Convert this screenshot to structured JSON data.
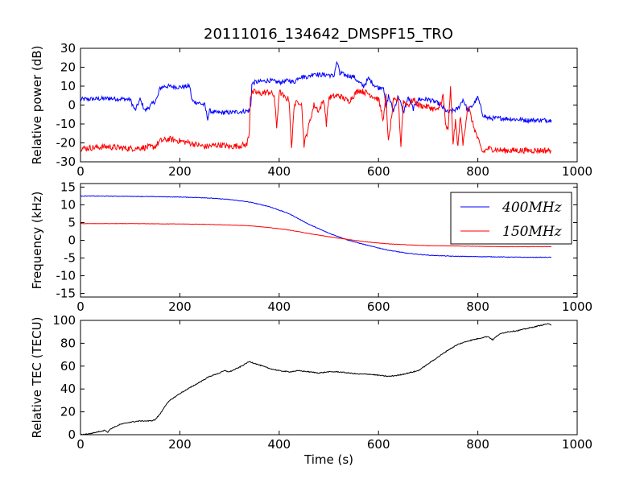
{
  "chart_data": [
    {
      "type": "line",
      "title": "20111016_134642_DMSPF15_TRO",
      "xlabel": "",
      "ylabel": "Relative power (dB)",
      "xlim": [
        0,
        1000
      ],
      "ylim": [
        -30,
        30
      ],
      "xticks": [
        0,
        200,
        400,
        600,
        800,
        1000
      ],
      "yticks": [
        -30,
        -20,
        -10,
        0,
        10,
        20,
        30
      ],
      "grid": false,
      "noise": [
        1.2,
        1.6
      ],
      "series": [
        {
          "color": "#0000ff",
          "x": [
            0,
            60,
            100,
            110,
            120,
            130,
            150,
            155,
            160,
            170,
            200,
            220,
            224,
            226,
            240,
            250,
            256,
            260,
            270,
            300,
            340,
            343,
            345,
            350,
            380,
            400,
            420,
            430,
            440,
            460,
            470,
            480,
            500,
            510,
            515,
            518,
            522,
            525,
            530,
            550,
            560,
            570,
            580,
            590,
            600,
            610,
            615,
            620,
            630,
            640,
            650,
            660,
            670,
            680,
            700,
            720,
            740,
            760,
            770,
            780,
            790,
            800,
            810,
            820,
            850,
            900,
            948
          ],
          "y": [
            3,
            3.5,
            3,
            -3,
            3,
            -3,
            2,
            4,
            9,
            10,
            9.5,
            10,
            3,
            2,
            1,
            0,
            -7,
            -3,
            -4,
            -4,
            -3,
            0,
            11,
            12,
            13,
            12,
            13,
            12,
            15,
            15,
            17,
            16,
            16,
            15,
            22,
            22,
            16,
            17,
            16,
            15,
            12,
            10,
            14,
            11,
            9,
            10,
            -2,
            5,
            -3,
            5,
            -4,
            4,
            -2,
            3,
            3,
            1,
            -4,
            -2,
            3,
            -3,
            0,
            4,
            -5,
            -7,
            -7,
            -8,
            -8
          ]
        },
        {
          "color": "#ff0000",
          "x": [
            0,
            50,
            100,
            150,
            160,
            180,
            220,
            250,
            280,
            300,
            335,
            340,
            342,
            345,
            350,
            360,
            380,
            390,
            395,
            400,
            405,
            410,
            420,
            425,
            430,
            440,
            445,
            450,
            470,
            480,
            490,
            495,
            500,
            520,
            540,
            560,
            580,
            600,
            610,
            615,
            620,
            630,
            640,
            645,
            650,
            660,
            670,
            680,
            700,
            720,
            730,
            735,
            740,
            745,
            750,
            755,
            760,
            765,
            770,
            780,
            790,
            800,
            805,
            810,
            820,
            850,
            900,
            948
          ],
          "y": [
            -23,
            -22,
            -23,
            -22,
            -19,
            -18,
            -20,
            -22,
            -21,
            -22,
            -21,
            -14,
            5,
            6,
            7,
            6,
            7,
            5,
            -12,
            7,
            6,
            4,
            3,
            -24,
            0,
            2,
            1,
            -21,
            0,
            -3,
            3,
            -10,
            4,
            5,
            2,
            8,
            6,
            3,
            -8,
            5,
            -20,
            2,
            3,
            -22,
            2,
            0,
            3,
            0,
            -1,
            -3,
            5,
            -10,
            -14,
            9,
            -20,
            -9,
            -22,
            -5,
            -21,
            0,
            -10,
            -18,
            -22,
            -25,
            -23,
            -24,
            -24,
            -24
          ]
        }
      ]
    },
    {
      "type": "line",
      "title": "",
      "xlabel": "",
      "ylabel": "Frequency (kHz)",
      "xlim": [
        0,
        1000
      ],
      "ylim": [
        -16,
        16
      ],
      "xticks": [
        0,
        200,
        400,
        600,
        800,
        1000
      ],
      "yticks": [
        -15,
        -10,
        -5,
        0,
        5,
        10,
        15
      ],
      "grid": false,
      "legend": "top-right",
      "noise": [
        0.08,
        0.05
      ],
      "series": [
        {
          "name": "400MHz",
          "color": "#0000ff",
          "x": [
            0,
            100,
            200,
            250,
            300,
            340,
            380,
            420,
            460,
            500,
            540,
            580,
            620,
            660,
            700,
            750,
            800,
            850,
            900,
            948
          ],
          "y": [
            12.5,
            12.4,
            12.2,
            12.0,
            11.5,
            10.8,
            9.5,
            7.5,
            4.5,
            2.0,
            0.0,
            -1.5,
            -2.8,
            -3.7,
            -4.2,
            -4.5,
            -4.6,
            -4.7,
            -4.8,
            -4.8
          ]
        },
        {
          "name": "150MHz",
          "color": "#ff0000",
          "x": [
            0,
            100,
            200,
            250,
            300,
            340,
            380,
            420,
            460,
            500,
            540,
            580,
            620,
            660,
            700,
            750,
            800,
            850,
            900,
            948
          ],
          "y": [
            4.7,
            4.7,
            4.6,
            4.5,
            4.3,
            4.1,
            3.6,
            2.9,
            1.9,
            1.0,
            0.2,
            -0.5,
            -1.0,
            -1.3,
            -1.5,
            -1.6,
            -1.7,
            -1.8,
            -1.8,
            -1.8
          ]
        }
      ]
    },
    {
      "type": "line",
      "title": "",
      "xlabel": "Time (s)",
      "ylabel": "Relative TEC (TECU)",
      "xlim": [
        0,
        1000
      ],
      "ylim": [
        0,
        100
      ],
      "xticks": [
        0,
        200,
        400,
        600,
        800,
        1000
      ],
      "yticks": [
        0,
        20,
        40,
        60,
        80,
        100
      ],
      "grid": false,
      "noise": [
        0.4
      ],
      "series": [
        {
          "color": "#000000",
          "x": [
            0,
            20,
            40,
            50,
            55,
            60,
            80,
            100,
            120,
            140,
            150,
            160,
            170,
            180,
            200,
            220,
            240,
            260,
            280,
            290,
            300,
            320,
            340,
            360,
            380,
            400,
            420,
            440,
            460,
            480,
            500,
            520,
            540,
            560,
            580,
            600,
            620,
            640,
            660,
            680,
            700,
            720,
            740,
            760,
            780,
            800,
            810,
            820,
            830,
            840,
            850,
            860,
            880,
            900,
            920,
            940,
            948
          ],
          "y": [
            0,
            1,
            3,
            4,
            2,
            5,
            9,
            11,
            12,
            12,
            13,
            18,
            25,
            30,
            36,
            41,
            46,
            51,
            54,
            56,
            55,
            59,
            64,
            61,
            58,
            56,
            55,
            56,
            55,
            54,
            55,
            55,
            54,
            53,
            53,
            52,
            51,
            52,
            54,
            56,
            62,
            68,
            74,
            79,
            82,
            84,
            85,
            86,
            83,
            87,
            89,
            90,
            91,
            93,
            95,
            97,
            96
          ]
        }
      ]
    }
  ]
}
